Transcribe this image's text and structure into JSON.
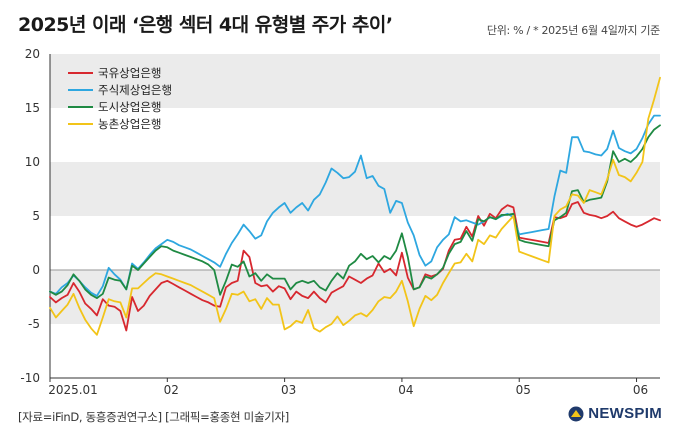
{
  "header": {
    "title": "2025년 이래 ‘은행 섹터 4대 유형별 주가 추이’",
    "unit_note": "단위: % / * 2025년 6월 4일까지 기준"
  },
  "footer": {
    "source": "[자료=iFinD, 동흥증권연구소] [그래픽=홍종현 미술기자]",
    "brand": "NEWSPIM"
  },
  "colors": {
    "band": "#ebebeb",
    "zero_line": "#aaaaaa"
  },
  "chart_data": {
    "type": "line",
    "title": "2025년 이래 ‘은행 섹터 4대 유형별 주가 추이’",
    "ylim": [
      -10,
      20
    ],
    "yticks": [
      -10,
      -5,
      0,
      5,
      10,
      15,
      20
    ],
    "xlim": [
      0,
      104
    ],
    "xticks": [
      {
        "x": 0,
        "label": "2025.01"
      },
      {
        "x": 20,
        "label": "02"
      },
      {
        "x": 40,
        "label": "03"
      },
      {
        "x": 60,
        "label": "04"
      },
      {
        "x": 80,
        "label": "05"
      },
      {
        "x": 100,
        "label": "06"
      }
    ],
    "legend_position": "top-left",
    "series": [
      {
        "name": "국유상업은행",
        "color": "#d7282f",
        "x": [
          0,
          1,
          2,
          3,
          4,
          5,
          6,
          7,
          8,
          9,
          10,
          11,
          12,
          13,
          14,
          15,
          16,
          17,
          18,
          19,
          20,
          21,
          22,
          23,
          24,
          25,
          26,
          27,
          28,
          29,
          30,
          31,
          32,
          33,
          34,
          35,
          36,
          37,
          38,
          39,
          40,
          41,
          42,
          43,
          44,
          45,
          46,
          47,
          48,
          49,
          50,
          51,
          52,
          53,
          54,
          55,
          56,
          57,
          58,
          59,
          60,
          61,
          62,
          63,
          64,
          65,
          66,
          67,
          68,
          69,
          70,
          71,
          72,
          73,
          74,
          75,
          76,
          77,
          78,
          79,
          80,
          81,
          82,
          83,
          84,
          85,
          86,
          87,
          88,
          89,
          90,
          91,
          92,
          93,
          94,
          95,
          96,
          97,
          98,
          99,
          100,
          101,
          102,
          103,
          104
        ],
        "y": [
          -2.5,
          -3.0,
          -2.6,
          -2.3,
          -1.2,
          -2.0,
          -3.1,
          -3.6,
          -4.2,
          -2.7,
          -3.3,
          -3.4,
          -3.8,
          -5.6,
          -2.5,
          -3.8,
          -3.3,
          -2.4,
          -1.8,
          -1.2,
          -1.0,
          -1.3,
          -1.6,
          -1.9,
          -2.2,
          -2.5,
          -2.8,
          -3.0,
          -3.3,
          -3.4,
          -1.6,
          -1.2,
          -1.0,
          1.8,
          1.2,
          -1.2,
          -1.5,
          -1.4,
          -2.0,
          -1.5,
          -1.7,
          -2.7,
          -2.0,
          -2.4,
          -2.6,
          -2.0,
          -2.6,
          -3.0,
          -2.1,
          -1.8,
          -1.5,
          -0.6,
          -0.9,
          -1.2,
          -0.8,
          -0.5,
          0.6,
          -0.2,
          0.1,
          -0.5,
          1.6,
          -0.7,
          -1.8,
          -1.6,
          -0.4,
          -0.6,
          -0.4,
          0.1,
          1.8,
          2.8,
          2.9,
          4.0,
          3.1,
          5.0,
          4.1,
          5.2,
          4.8,
          5.6,
          6.0,
          5.8,
          3.0,
          2.9,
          2.8,
          2.7,
          2.6,
          2.5,
          4.9,
          4.8,
          5.0,
          6.1,
          6.3,
          5.3,
          5.1,
          5.0,
          4.8,
          5.0,
          5.4,
          4.8,
          4.5,
          4.2,
          4.0,
          4.2,
          4.5,
          4.8,
          4.6
        ]
      },
      {
        "name": "주식제상업은행",
        "color": "#2ea7e0",
        "x": [
          0,
          1,
          2,
          3,
          4,
          5,
          6,
          7,
          8,
          9,
          10,
          11,
          12,
          13,
          14,
          15,
          16,
          17,
          18,
          19,
          20,
          21,
          22,
          23,
          24,
          25,
          26,
          27,
          28,
          29,
          30,
          31,
          32,
          33,
          34,
          35,
          36,
          37,
          38,
          39,
          40,
          41,
          42,
          43,
          44,
          45,
          46,
          47,
          48,
          49,
          50,
          51,
          52,
          53,
          54,
          55,
          56,
          57,
          58,
          59,
          60,
          61,
          62,
          63,
          64,
          65,
          66,
          67,
          68,
          69,
          70,
          71,
          72,
          73,
          74,
          75,
          76,
          77,
          78,
          79,
          80,
          81,
          82,
          83,
          84,
          85,
          86,
          87,
          88,
          89,
          90,
          91,
          92,
          93,
          94,
          95,
          96,
          97,
          98,
          99,
          100,
          101,
          102,
          103,
          104
        ],
        "y": [
          -2.0,
          -2.2,
          -1.6,
          -1.2,
          -0.5,
          -1.0,
          -1.6,
          -2.1,
          -2.4,
          -1.5,
          0.2,
          -0.4,
          -0.9,
          -1.8,
          0.6,
          0.1,
          0.7,
          1.4,
          2.0,
          2.4,
          2.8,
          2.6,
          2.3,
          2.1,
          1.9,
          1.6,
          1.3,
          1.0,
          0.7,
          0.3,
          1.5,
          2.5,
          3.3,
          4.2,
          3.6,
          2.9,
          3.2,
          4.5,
          5.3,
          5.8,
          6.2,
          5.3,
          5.8,
          6.2,
          5.5,
          6.5,
          7.0,
          8.1,
          9.4,
          9.0,
          8.5,
          8.6,
          9.1,
          10.6,
          8.5,
          8.7,
          7.8,
          7.5,
          5.3,
          6.4,
          6.2,
          4.4,
          3.2,
          1.4,
          0.4,
          0.8,
          2.1,
          2.8,
          3.3,
          4.9,
          4.5,
          4.6,
          4.4,
          4.2,
          4.5,
          4.9,
          4.7,
          5.0,
          5.2,
          4.9,
          3.3,
          3.4,
          3.5,
          3.6,
          3.7,
          3.8,
          6.8,
          9.2,
          9.0,
          12.3,
          12.3,
          11.0,
          10.9,
          10.7,
          10.6,
          11.2,
          12.9,
          11.3,
          11.0,
          10.8,
          11.2,
          12.2,
          13.5,
          14.3,
          14.3
        ]
      },
      {
        "name": "도시상업은행",
        "color": "#1f8a43",
        "x": [
          0,
          1,
          2,
          3,
          4,
          5,
          6,
          7,
          8,
          9,
          10,
          11,
          12,
          13,
          14,
          15,
          16,
          17,
          18,
          19,
          20,
          21,
          22,
          23,
          24,
          25,
          26,
          27,
          28,
          29,
          30,
          31,
          32,
          33,
          34,
          35,
          36,
          37,
          38,
          39,
          40,
          41,
          42,
          43,
          44,
          45,
          46,
          47,
          48,
          49,
          50,
          51,
          52,
          53,
          54,
          55,
          56,
          57,
          58,
          59,
          60,
          61,
          62,
          63,
          64,
          65,
          66,
          67,
          68,
          69,
          70,
          71,
          72,
          73,
          74,
          75,
          76,
          77,
          78,
          79,
          80,
          81,
          82,
          83,
          84,
          85,
          86,
          87,
          88,
          89,
          90,
          91,
          92,
          93,
          94,
          95,
          96,
          97,
          98,
          99,
          100,
          101,
          102,
          103,
          104
        ],
        "y": [
          -2.0,
          -2.3,
          -2.0,
          -1.4,
          -0.4,
          -1.0,
          -1.8,
          -2.3,
          -2.6,
          -2.2,
          -0.7,
          -0.9,
          -1.0,
          -1.8,
          0.4,
          0.0,
          0.6,
          1.2,
          1.8,
          2.2,
          2.1,
          1.8,
          1.6,
          1.4,
          1.2,
          1.0,
          0.8,
          0.5,
          0.0,
          -2.3,
          -1.0,
          0.5,
          0.3,
          0.8,
          -0.6,
          -0.3,
          -1.0,
          -0.4,
          -0.8,
          -0.8,
          -0.8,
          -1.8,
          -1.2,
          -1.0,
          -1.2,
          -1.0,
          -1.6,
          -1.9,
          -1.0,
          -0.3,
          -0.8,
          0.4,
          0.8,
          1.5,
          1.0,
          1.3,
          0.7,
          1.3,
          1.0,
          1.8,
          3.4,
          1.2,
          -1.8,
          -1.6,
          -0.6,
          -0.8,
          -0.4,
          0.2,
          1.5,
          2.4,
          2.6,
          3.6,
          2.7,
          4.7,
          4.5,
          4.9,
          4.7,
          5.1,
          5.1,
          5.2,
          2.8,
          2.6,
          2.5,
          2.4,
          2.3,
          2.2,
          4.6,
          4.9,
          5.3,
          7.3,
          7.4,
          6.3,
          6.5,
          6.6,
          6.7,
          8.2,
          11.0,
          10.0,
          10.3,
          10.0,
          10.5,
          11.2,
          12.3,
          13.0,
          13.4
        ]
      },
      {
        "name": "농촌상업은행",
        "color": "#f2c419",
        "x": [
          0,
          1,
          2,
          3,
          4,
          5,
          6,
          7,
          8,
          9,
          10,
          11,
          12,
          13,
          14,
          15,
          16,
          17,
          18,
          19,
          20,
          21,
          22,
          23,
          24,
          25,
          26,
          27,
          28,
          29,
          30,
          31,
          32,
          33,
          34,
          35,
          36,
          37,
          38,
          39,
          40,
          41,
          42,
          43,
          44,
          45,
          46,
          47,
          48,
          49,
          50,
          51,
          52,
          53,
          54,
          55,
          56,
          57,
          58,
          59,
          60,
          61,
          62,
          63,
          64,
          65,
          66,
          67,
          68,
          69,
          70,
          71,
          72,
          73,
          74,
          75,
          76,
          77,
          78,
          79,
          80,
          81,
          82,
          83,
          84,
          85,
          86,
          87,
          88,
          89,
          90,
          91,
          92,
          93,
          94,
          95,
          96,
          97,
          98,
          99,
          100,
          101,
          102,
          103,
          104
        ],
        "y": [
          -3.5,
          -4.4,
          -3.8,
          -3.2,
          -2.2,
          -3.5,
          -4.6,
          -5.4,
          -6.0,
          -4.4,
          -2.7,
          -2.9,
          -3.0,
          -4.4,
          -1.7,
          -1.7,
          -1.2,
          -0.7,
          -0.3,
          -0.4,
          -0.6,
          -0.8,
          -1.0,
          -1.2,
          -1.4,
          -1.7,
          -2.0,
          -2.3,
          -2.6,
          -4.8,
          -3.6,
          -2.2,
          -2.3,
          -2.0,
          -2.9,
          -2.7,
          -3.6,
          -2.6,
          -3.2,
          -3.2,
          -5.5,
          -5.2,
          -4.7,
          -4.9,
          -3.7,
          -5.4,
          -5.7,
          -5.3,
          -5.0,
          -4.3,
          -5.1,
          -4.7,
          -4.2,
          -4.0,
          -4.3,
          -3.7,
          -2.9,
          -2.5,
          -2.6,
          -2.0,
          -1.0,
          -2.9,
          -5.2,
          -3.6,
          -2.4,
          -2.8,
          -2.3,
          -1.2,
          -0.3,
          0.6,
          0.7,
          1.5,
          0.8,
          2.8,
          2.4,
          3.2,
          3.0,
          3.8,
          4.4,
          5.0,
          1.7,
          1.5,
          1.3,
          1.1,
          0.9,
          0.7,
          5.0,
          5.6,
          5.9,
          7.0,
          6.9,
          6.2,
          7.4,
          7.2,
          7.0,
          8.4,
          10.2,
          8.8,
          8.6,
          8.2,
          9.0,
          10.0,
          14.0,
          15.8,
          17.8
        ]
      }
    ]
  }
}
